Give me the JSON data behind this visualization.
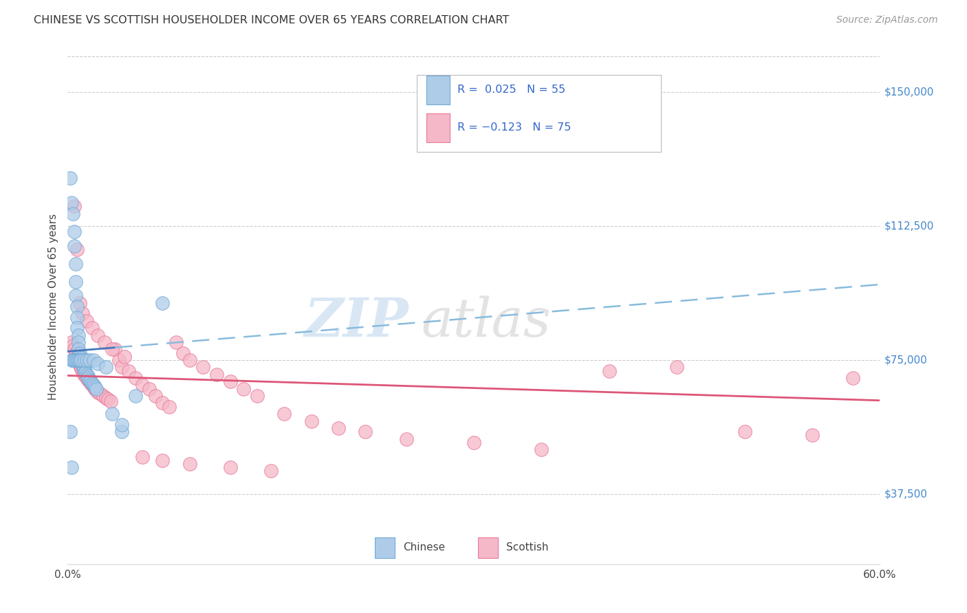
{
  "title": "CHINESE VS SCOTTISH HOUSEHOLDER INCOME OVER 65 YEARS CORRELATION CHART",
  "source": "Source: ZipAtlas.com",
  "ylabel": "Householder Income Over 65 years",
  "yticks": [
    37500,
    75000,
    112500,
    150000
  ],
  "ytick_labels": [
    "$37,500",
    "$75,000",
    "$112,500",
    "$150,000"
  ],
  "xmin": 0.0,
  "xmax": 0.6,
  "ymin": 18000,
  "ymax": 162000,
  "chinese_color": "#aecce8",
  "chinese_edge": "#6fa8d6",
  "scottish_color": "#f5b8c8",
  "scottish_edge": "#e8789a",
  "chinese_line_color_solid": "#4477bb",
  "chinese_line_color_dash": "#88bbdd",
  "scottish_line_color": "#dd5577",
  "chinese_R": 0.025,
  "chinese_N": 55,
  "scottish_R": -0.123,
  "scottish_N": 75,
  "bottom_legend_chinese": "Chinese",
  "bottom_legend_scottish": "Scottish",
  "legend_text_color": "#3366cc",
  "watermark_zip_color": "#c0d8ee",
  "watermark_atlas_color": "#c8c8c8",
  "chinese_x": [
    0.002,
    0.003,
    0.004,
    0.005,
    0.005,
    0.006,
    0.006,
    0.006,
    0.007,
    0.007,
    0.007,
    0.008,
    0.008,
    0.008,
    0.009,
    0.009,
    0.01,
    0.01,
    0.01,
    0.011,
    0.011,
    0.012,
    0.012,
    0.013,
    0.013,
    0.014,
    0.015,
    0.015,
    0.016,
    0.017,
    0.018,
    0.019,
    0.02,
    0.021,
    0.003,
    0.004,
    0.005,
    0.006,
    0.007,
    0.008,
    0.009,
    0.01,
    0.012,
    0.014,
    0.016,
    0.019,
    0.022,
    0.028,
    0.033,
    0.04,
    0.002,
    0.003,
    0.04,
    0.07,
    0.05
  ],
  "chinese_y": [
    126000,
    119000,
    116000,
    111000,
    107000,
    102000,
    97000,
    93000,
    90000,
    87000,
    84000,
    82000,
    80000,
    78000,
    77000,
    76000,
    75500,
    75000,
    74500,
    74000,
    73500,
    73000,
    72500,
    72000,
    71500,
    71000,
    70500,
    70000,
    69500,
    69000,
    68500,
    68000,
    67500,
    67000,
    75000,
    75000,
    75000,
    75000,
    75000,
    75000,
    75000,
    75000,
    75000,
    75000,
    75000,
    75000,
    74000,
    73000,
    60000,
    55000,
    55000,
    45000,
    57000,
    91000,
    65000
  ],
  "scottish_x": [
    0.003,
    0.004,
    0.005,
    0.006,
    0.007,
    0.007,
    0.008,
    0.008,
    0.009,
    0.009,
    0.01,
    0.01,
    0.011,
    0.012,
    0.012,
    0.013,
    0.014,
    0.015,
    0.016,
    0.017,
    0.018,
    0.019,
    0.02,
    0.021,
    0.022,
    0.024,
    0.026,
    0.028,
    0.03,
    0.032,
    0.035,
    0.038,
    0.04,
    0.045,
    0.05,
    0.055,
    0.06,
    0.065,
    0.07,
    0.075,
    0.08,
    0.085,
    0.09,
    0.1,
    0.11,
    0.12,
    0.13,
    0.14,
    0.16,
    0.18,
    0.2,
    0.22,
    0.25,
    0.3,
    0.35,
    0.4,
    0.45,
    0.5,
    0.55,
    0.58,
    0.005,
    0.007,
    0.009,
    0.011,
    0.014,
    0.018,
    0.022,
    0.027,
    0.033,
    0.042,
    0.055,
    0.07,
    0.09,
    0.12,
    0.15
  ],
  "scottish_y": [
    80000,
    79000,
    78000,
    77000,
    76000,
    75500,
    75000,
    74500,
    74000,
    73500,
    73000,
    72500,
    72000,
    71500,
    71000,
    70500,
    70000,
    69500,
    69000,
    68500,
    68000,
    67500,
    67000,
    66500,
    66000,
    65500,
    65000,
    64500,
    64000,
    63500,
    78000,
    75000,
    73000,
    72000,
    70000,
    68000,
    67000,
    65000,
    63000,
    62000,
    80000,
    77000,
    75000,
    73000,
    71000,
    69000,
    67000,
    65000,
    60000,
    58000,
    56000,
    55000,
    53000,
    52000,
    50000,
    72000,
    73000,
    55000,
    54000,
    70000,
    118000,
    106000,
    91000,
    88000,
    86000,
    84000,
    82000,
    80000,
    78000,
    76000,
    48000,
    47000,
    46000,
    45000,
    44000
  ]
}
